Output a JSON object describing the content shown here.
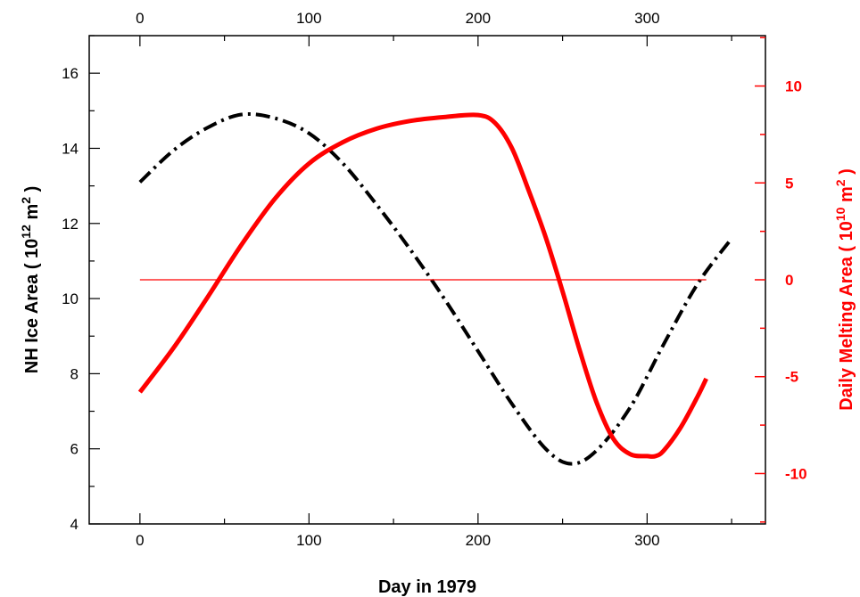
{
  "chart_data": {
    "type": "line",
    "xlabel": "Day  in  1979",
    "ylabel_left": {
      "prefix": "NH  Ice  Area  ( 10",
      "exp": "12",
      "unit": "  m",
      "unit_exp": "2",
      "suffix": " )"
    },
    "ylabel_right": {
      "prefix": "Daily  Melting  Area  ( 10",
      "exp": "10",
      "unit": "  m",
      "unit_exp": "2",
      "suffix": " )"
    },
    "xlim": [
      -30,
      370
    ],
    "ylim_left": [
      4,
      17
    ],
    "ylim_right": [
      -12.6,
      12.6
    ],
    "x_ticks_bottom": [
      0,
      100,
      200,
      300
    ],
    "x_ticks_top": [
      0,
      100,
      200,
      300
    ],
    "y_ticks_left": [
      4,
      6,
      8,
      10,
      12,
      14,
      16
    ],
    "y_ticks_right": [
      -10,
      -5,
      0,
      5,
      10
    ],
    "colors": {
      "ice_area": "#000000",
      "melting": "#ff0000",
      "zero_line": "#ff0000"
    },
    "series": [
      {
        "axis": "left",
        "style": "dash-dot",
        "x": [
          0,
          20,
          40,
          60,
          80,
          100,
          120,
          140,
          160,
          180,
          200,
          220,
          240,
          255,
          270,
          290,
          310,
          330,
          350
        ],
        "y": [
          13.1,
          13.95,
          14.55,
          14.9,
          14.8,
          14.4,
          13.6,
          12.5,
          11.3,
          10.0,
          8.6,
          7.2,
          6.0,
          5.6,
          5.95,
          7.1,
          8.8,
          10.4,
          11.6
        ]
      },
      {
        "axis": "right",
        "style": "solid",
        "x": [
          0,
          20,
          40,
          60,
          80,
          100,
          120,
          140,
          160,
          180,
          200,
          210,
          220,
          230,
          240,
          250,
          260,
          270,
          280,
          290,
          300,
          305,
          310,
          320,
          330,
          335
        ],
        "y": [
          -5.8,
          -3.5,
          -0.9,
          1.8,
          4.2,
          6.0,
          7.1,
          7.8,
          8.2,
          8.4,
          8.5,
          8.1,
          6.8,
          4.6,
          2.2,
          -0.6,
          -3.6,
          -6.3,
          -8.2,
          -9.0,
          -9.1,
          -9.1,
          -8.8,
          -7.6,
          -6.0,
          -5.1
        ]
      },
      {
        "axis": "right",
        "style": "thin",
        "x": [
          0,
          335
        ],
        "y": [
          0,
          0
        ]
      }
    ]
  }
}
